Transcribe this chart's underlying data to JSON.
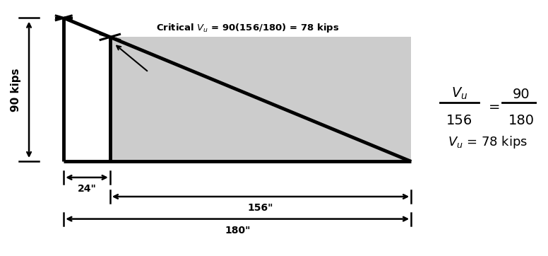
{
  "bg_color": "#ffffff",
  "shear_color": "#cccccc",
  "line_color": "#000000",
  "title_text": "Critical $V_u$ = 90(156/180) = 78 kips",
  "label_90kips": "90 kips",
  "label_24": "24\"",
  "label_156": "156\"",
  "label_180": "180\"",
  "formula_result": "$V_u$ = 78 kips",
  "x_wall": 0.0,
  "x_critical": 24.0,
  "x_end": 180.0,
  "y_top": 90.0,
  "y_bot": 0.0,
  "lw_main": 3.5,
  "lw_dim": 1.8,
  "xlim": [
    -32,
    245
  ],
  "ylim": [
    -58,
    100
  ]
}
